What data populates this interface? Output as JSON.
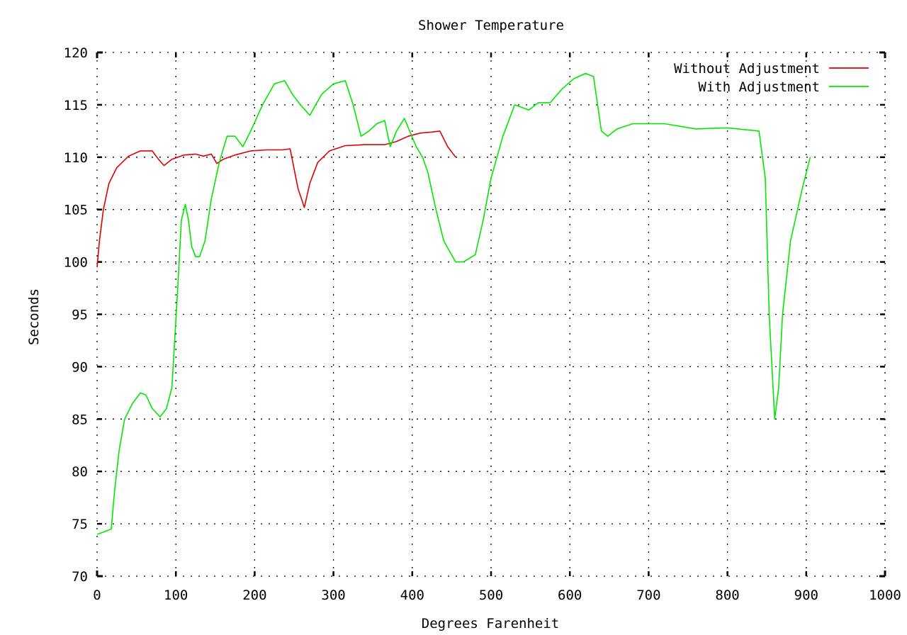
{
  "chart_data": {
    "type": "line",
    "title": "Shower Temperature",
    "xlabel": "Degrees Farenheit",
    "ylabel": "Seconds",
    "xlim": [
      0,
      1000
    ],
    "ylim": [
      70,
      120
    ],
    "xticks": [
      0,
      100,
      200,
      300,
      400,
      500,
      600,
      700,
      800,
      900,
      1000
    ],
    "yticks": [
      70,
      75,
      80,
      85,
      90,
      95,
      100,
      105,
      110,
      115,
      120
    ],
    "grid": true,
    "grid_style": "dotted",
    "legend_position": "top-right",
    "series": [
      {
        "name": "Without Adjustment",
        "color": "#e00000",
        "x": [
          0,
          3,
          8,
          15,
          25,
          40,
          55,
          70,
          78,
          85,
          95,
          110,
          125,
          135,
          145,
          152,
          160,
          175,
          195,
          215,
          235,
          245,
          255,
          263,
          270,
          280,
          295,
          315,
          340,
          365,
          380,
          395,
          410,
          425,
          435,
          445,
          455
        ],
        "y": [
          99.5,
          102,
          105,
          107.5,
          109,
          110.1,
          110.6,
          110.6,
          109.8,
          109.2,
          109.8,
          110.2,
          110.3,
          110.1,
          110.3,
          109.4,
          109.8,
          110.2,
          110.6,
          110.7,
          110.7,
          110.8,
          107,
          105.2,
          107.5,
          109.5,
          110.6,
          111.1,
          111.2,
          111.2,
          111.5,
          112,
          112.3,
          112.4,
          112.5,
          111,
          110
        ]
      },
      {
        "name": "With Adjustment",
        "color": "#00e800",
        "x": [
          0,
          8,
          18,
          22,
          28,
          35,
          45,
          55,
          62,
          70,
          80,
          88,
          95,
          102,
          107,
          112,
          116,
          120,
          125,
          130,
          137,
          145,
          155,
          165,
          175,
          185,
          195,
          210,
          225,
          238,
          248,
          258,
          270,
          285,
          300,
          315,
          325,
          335,
          345,
          355,
          365,
          372,
          380,
          390,
          405,
          413,
          420,
          430,
          440,
          455,
          465,
          480,
          490,
          500,
          515,
          530,
          548,
          560,
          575,
          590,
          605,
          620,
          630,
          640,
          648,
          660,
          680,
          720,
          760,
          800,
          840,
          848,
          853,
          860,
          865,
          870,
          880,
          895,
          905
        ],
        "y": [
          74,
          74.2,
          74.5,
          78,
          82,
          85,
          86.5,
          87.5,
          87.3,
          86,
          85.2,
          86,
          88,
          97,
          104,
          105.5,
          104,
          101.5,
          100.5,
          100.5,
          102,
          106,
          109.5,
          112,
          112,
          111,
          112.5,
          115,
          117,
          117.3,
          116,
          115,
          114,
          116,
          117,
          117.3,
          115,
          112,
          112.5,
          113.2,
          113.5,
          111,
          112.5,
          113.7,
          111,
          110,
          108.5,
          105,
          102,
          100,
          100,
          100.7,
          104,
          108,
          112,
          115,
          114.5,
          115.2,
          115.2,
          116.5,
          117.5,
          118,
          117.7,
          112.5,
          112,
          112.7,
          113.2,
          113.2,
          112.7,
          112.8,
          112.5,
          108,
          95,
          85,
          88,
          95,
          102,
          107,
          110
        ]
      }
    ]
  }
}
